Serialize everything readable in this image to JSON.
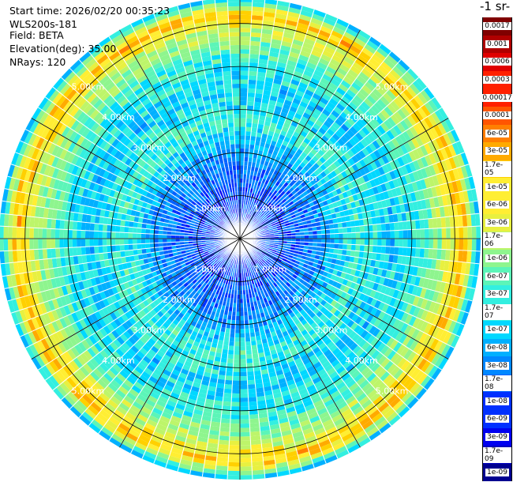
{
  "header": {
    "start_time": "Start time: 2026/02/20 00:35:23",
    "instrument": "WLS200s-181",
    "field": "Field: BETA",
    "elevation": "Elevation(deg): 35.00",
    "nrays": "NRays: 120"
  },
  "colorbar": {
    "units_fragment": "-1 sr-",
    "labels": [
      "0.0017",
      "0.001",
      "0.0006",
      "0.0003",
      "0.00017",
      "0.0001",
      "6e-05",
      "3e-05",
      "1.7e-05",
      "1e-05",
      "6e-06",
      "3e-06",
      "1.7e-06",
      "1e-06",
      "6e-07",
      "3e-07",
      "1.7e-07",
      "1e-07",
      "6e-08",
      "3e-08",
      "1.7e-08",
      "1e-08",
      "6e-09",
      "3e-09",
      "1.7e-09",
      "1e-09"
    ],
    "colors": [
      "#800000",
      "#b00000",
      "#e00000",
      "#ff2000",
      "#ff5500",
      "#ff7f00",
      "#ffaa00",
      "#ffd000",
      "#ffee33",
      "#e8f040",
      "#bdf56a",
      "#8ef58e",
      "#5cf5b8",
      "#33efe0",
      "#00d8ff",
      "#00b0ff",
      "#0088ff",
      "#0060ff",
      "#0030ff",
      "#0000f0",
      "#0000c0",
      "#000090"
    ]
  },
  "chart_data": {
    "type": "heatmap",
    "projection": "polar-ppi",
    "field": "BETA",
    "nrays": 120,
    "elevation_deg": 35.0,
    "range_rings_km": [
      1,
      2,
      3,
      4,
      5
    ],
    "ring_labels": [
      "1.00km",
      "2.00km",
      "3.00km",
      "4.00km",
      "5.00km"
    ],
    "max_range_km": 5.6,
    "scale": "log",
    "value_range": [
      1e-09,
      0.0017
    ],
    "range_profile": [
      {
        "range_km": 0.0,
        "beta": 1e-08
      },
      {
        "range_km": 1.0,
        "beta": 1e-08
      },
      {
        "range_km": 2.0,
        "beta": 4e-08
      },
      {
        "range_km": 2.7,
        "beta": 3e-07
      },
      {
        "range_km": 3.5,
        "beta": 1e-07
      },
      {
        "range_km": 4.2,
        "beta": 3e-07
      },
      {
        "range_km": 4.8,
        "beta": 2e-06
      },
      {
        "range_km": 5.2,
        "beta": 2e-05
      },
      {
        "range_km": 5.6,
        "beta": 6e-08
      }
    ]
  }
}
